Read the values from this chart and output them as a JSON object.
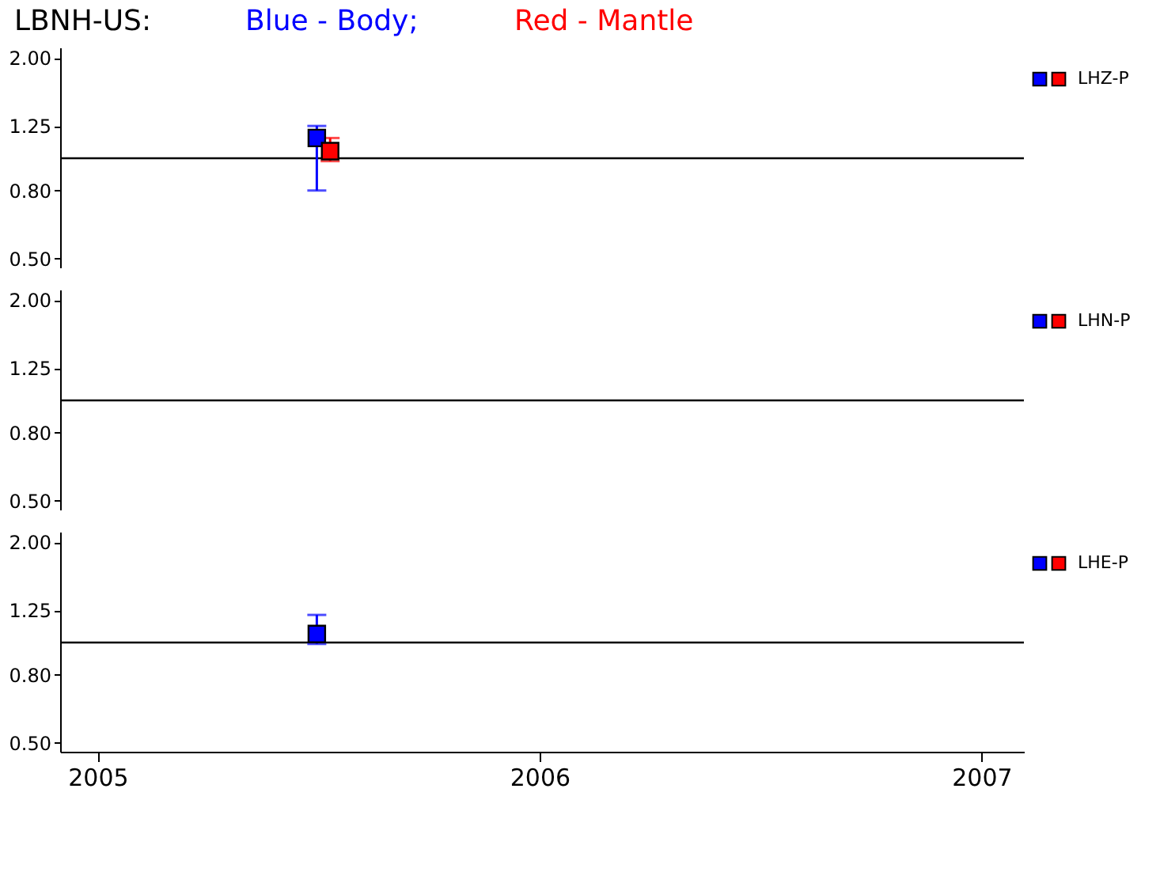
{
  "chart_data": [
    {
      "type": "scatter",
      "title": "LBNH-US:",
      "annotations": [
        "Blue - Body;",
        "Red - Mantle"
      ],
      "legend_title": "LHZ-P",
      "log": "y",
      "marker": "square",
      "grid": false,
      "tick_labels": "y",
      "xlim": [
        "2004-12-01",
        "2007-02-05"
      ],
      "ylim": [
        0.47,
        2.15
      ],
      "yticks": [
        {
          "value": 0.5,
          "label": "0.50"
        },
        {
          "value": 0.8,
          "label": "0.80"
        },
        {
          "value": 1.25,
          "label": "1.25"
        },
        {
          "value": 2.0,
          "label": "2.00"
        }
      ],
      "ref_lines": [
        {
          "axis": "y",
          "value": 1.0,
          "color": "#000000"
        }
      ],
      "series": [
        {
          "color": "#0000ff",
          "x": [
            "2005-07-01"
          ],
          "values": [
            1.15
          ],
          "errors": [
            [
              0.8,
              1.25
            ]
          ]
        },
        {
          "color": "#ff0000",
          "x": [
            "2005-07-12"
          ],
          "values": [
            1.05
          ],
          "errors": [
            [
              0.98,
              1.15
            ]
          ]
        }
      ]
    },
    {
      "type": "scatter",
      "legend_title": "LHN-P",
      "log": "y",
      "marker": "square",
      "grid": false,
      "tick_labels": "y",
      "ylim": [
        0.47,
        2.15
      ],
      "yticks": [
        {
          "value": 0.5,
          "label": "0.50"
        },
        {
          "value": 0.8,
          "label": "0.80"
        },
        {
          "value": 1.25,
          "label": "1.25"
        },
        {
          "value": 2.0,
          "label": "2.00"
        }
      ],
      "ref_lines": [
        {
          "axis": "y",
          "value": 1.0,
          "color": "#000000"
        }
      ],
      "series": [
        {
          "color": "#0000ff"
        },
        {
          "color": "#ff0000"
        }
      ]
    },
    {
      "type": "scatter",
      "legend_title": "LHE-P",
      "log": "y",
      "marker": "square",
      "grid": false,
      "xlim": [
        "2004-12-01",
        "2007-02-05"
      ],
      "xticks": [
        {
          "value": "2005",
          "label": "2005"
        },
        {
          "value": "2006",
          "label": "2006"
        },
        {
          "value": "2007",
          "label": "2007"
        }
      ],
      "ylim": [
        0.47,
        2.15
      ],
      "yticks": [
        {
          "value": 0.5,
          "label": "0.50"
        },
        {
          "value": 0.8,
          "label": "0.80"
        },
        {
          "value": 1.25,
          "label": "1.25"
        },
        {
          "value": 2.0,
          "label": "2.00"
        }
      ],
      "ref_lines": [
        {
          "axis": "y",
          "value": 1.0,
          "color": "#000000"
        }
      ],
      "series": [
        {
          "color": "#0000ff",
          "x": [
            "2005-07-01"
          ],
          "values": [
            1.06
          ],
          "errors": [
            [
              0.99,
              1.21
            ]
          ]
        },
        {
          "color": "#ff0000"
        }
      ]
    }
  ]
}
